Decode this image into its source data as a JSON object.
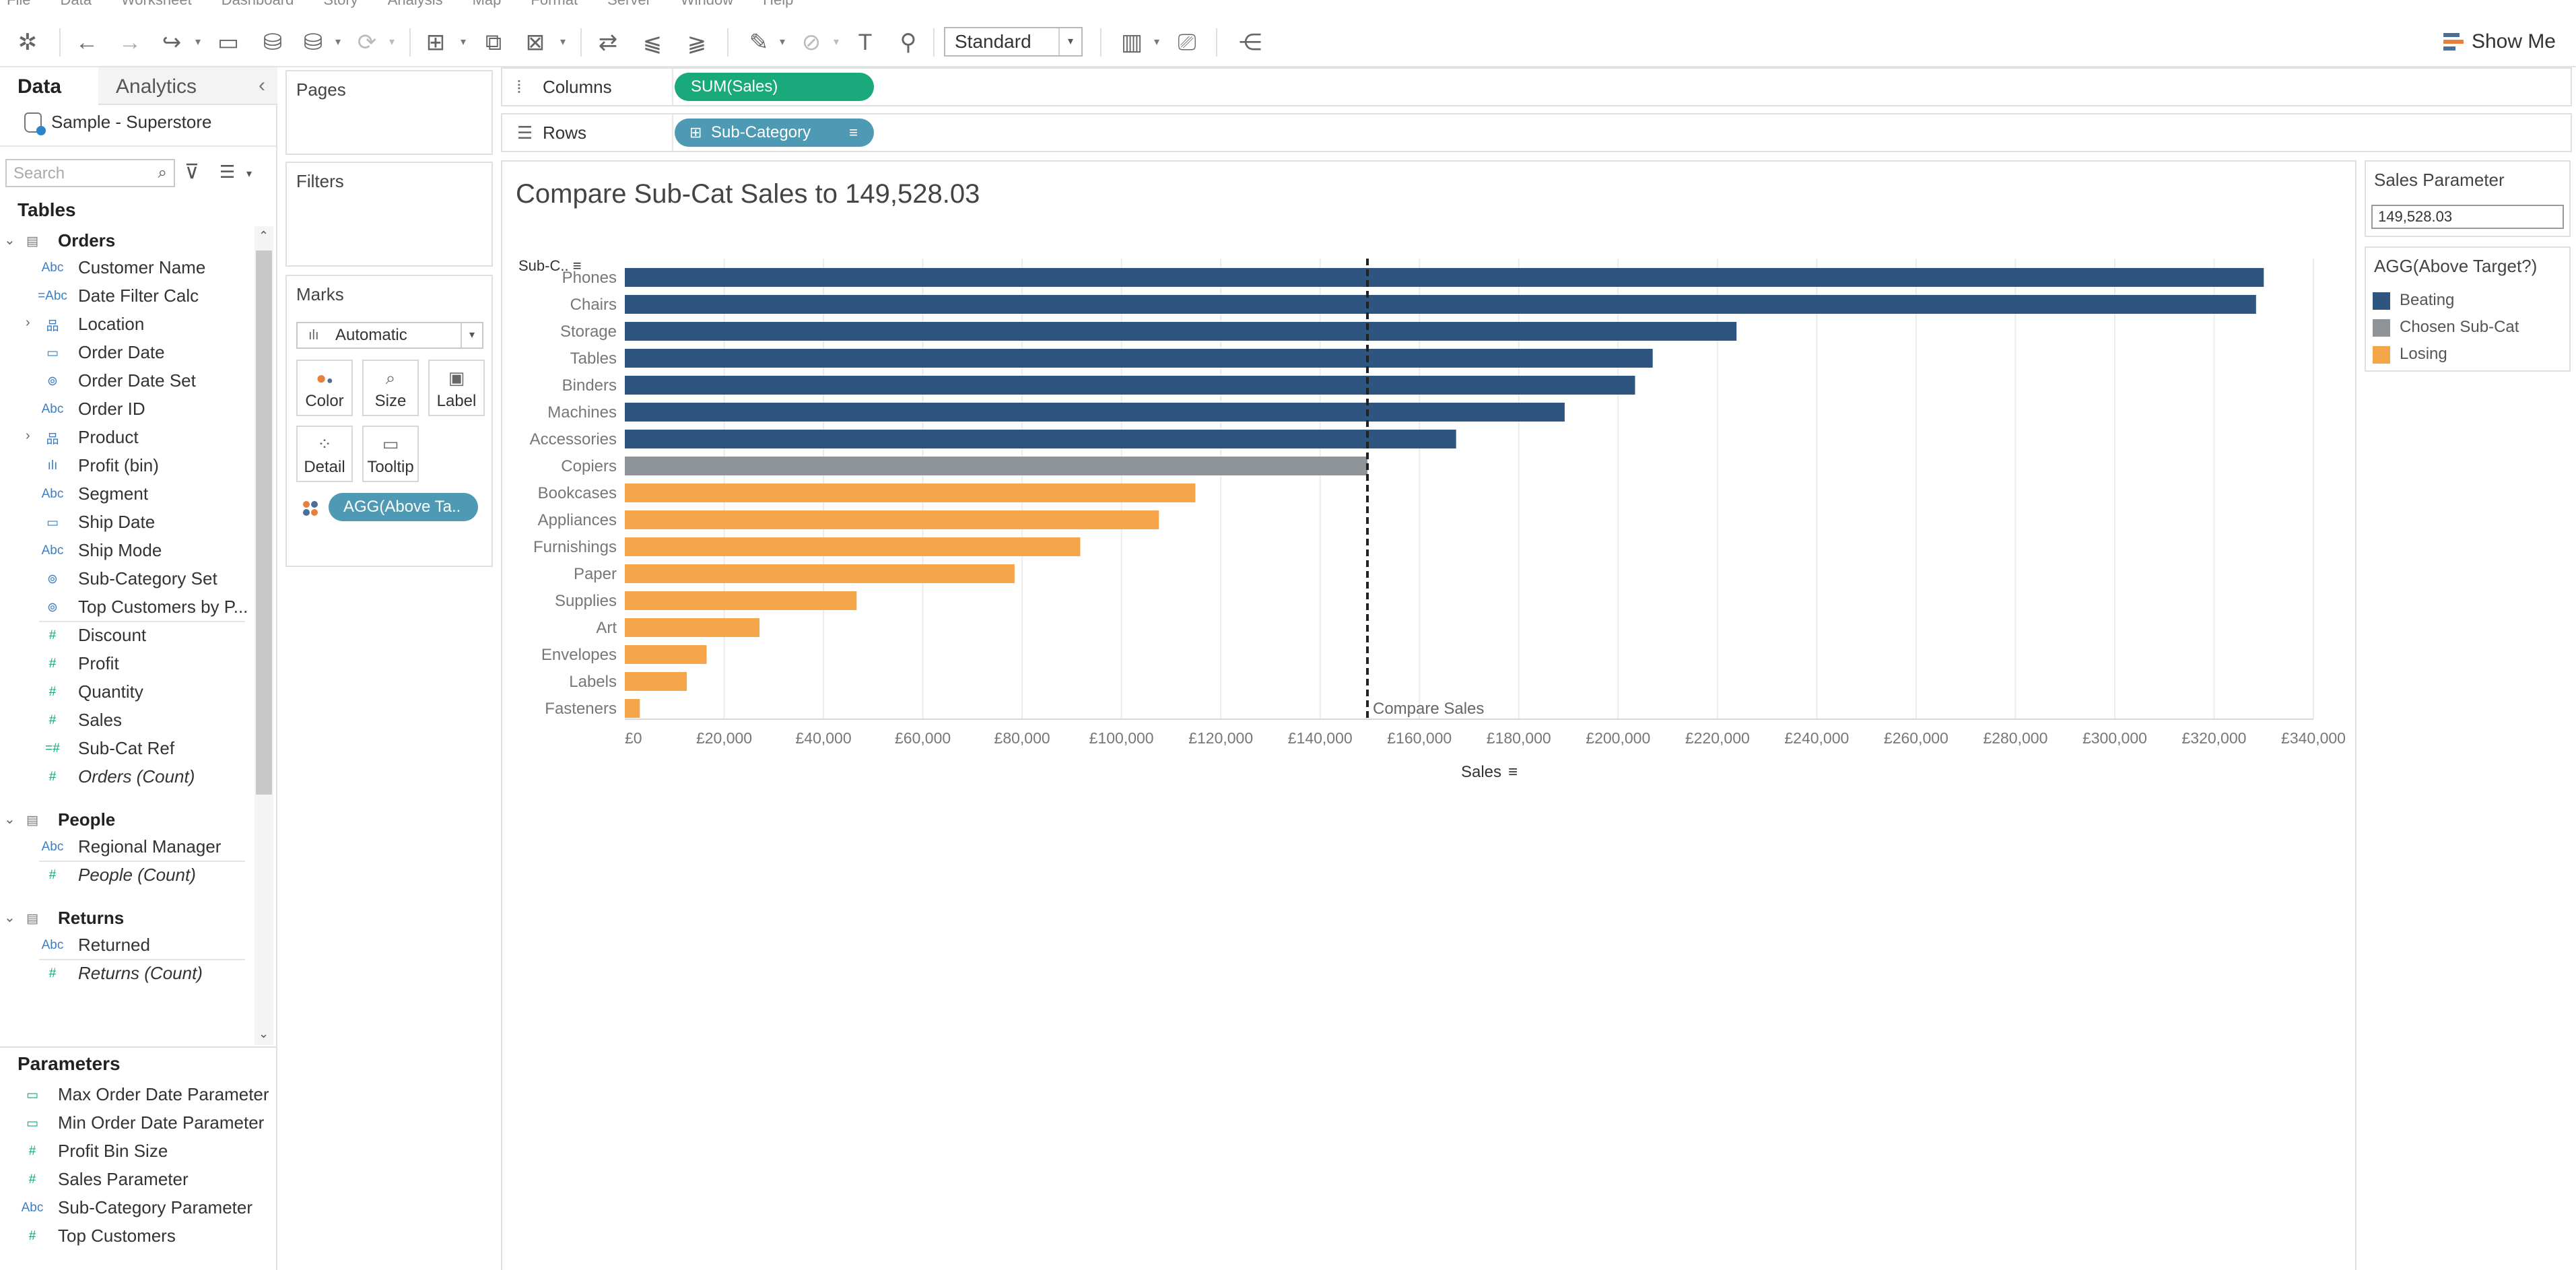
{
  "menu": [
    "File",
    "Data",
    "Worksheet",
    "Dashboard",
    "Story",
    "Analysis",
    "Map",
    "Format",
    "Server",
    "Window",
    "Help"
  ],
  "toolbar": {
    "fit_select": "Standard",
    "show_me": "Show Me"
  },
  "data_pane": {
    "tab_data": "Data",
    "tab_analytics": "Analytics",
    "datasource": "Sample - Superstore",
    "search_placeholder": "Search",
    "tables_heading": "Tables",
    "tables": [
      {
        "name": "Orders",
        "fields": [
          {
            "icon": "Abc",
            "label": "Customer Name"
          },
          {
            "icon": "=Abc",
            "label": "Date Filter Calc"
          },
          {
            "icon": "hier",
            "label": "Location",
            "expandable": true
          },
          {
            "icon": "cal",
            "label": "Order Date"
          },
          {
            "icon": "set",
            "label": "Order Date Set"
          },
          {
            "icon": "Abc",
            "label": "Order ID"
          },
          {
            "icon": "hier",
            "label": "Product",
            "expandable": true
          },
          {
            "icon": "bin",
            "label": "Profit (bin)"
          },
          {
            "icon": "Abc",
            "label": "Segment"
          },
          {
            "icon": "cal",
            "label": "Ship Date"
          },
          {
            "icon": "Abc",
            "label": "Ship Mode"
          },
          {
            "icon": "set",
            "label": "Sub-Category Set"
          },
          {
            "icon": "set",
            "label": "Top Customers by P..."
          },
          {
            "icon": "#",
            "label": "Discount",
            "measure": true
          },
          {
            "icon": "#",
            "label": "Profit",
            "measure": true
          },
          {
            "icon": "#",
            "label": "Quantity",
            "measure": true
          },
          {
            "icon": "#",
            "label": "Sales",
            "measure": true
          },
          {
            "icon": "=#",
            "label": "Sub-Cat Ref",
            "measure": true
          },
          {
            "icon": "#",
            "label": "Orders (Count)",
            "measure": true,
            "italic": true
          }
        ]
      },
      {
        "name": "People",
        "fields": [
          {
            "icon": "Abc",
            "label": "Regional Manager"
          },
          {
            "icon": "#",
            "label": "People (Count)",
            "measure": true,
            "italic": true
          }
        ]
      },
      {
        "name": "Returns",
        "fields": [
          {
            "icon": "Abc",
            "label": "Returned"
          },
          {
            "icon": "#",
            "label": "Returns (Count)",
            "measure": true,
            "italic": true
          }
        ]
      }
    ],
    "parameters_heading": "Parameters",
    "parameters": [
      {
        "icon": "cal",
        "label": "Max Order Date Parameter"
      },
      {
        "icon": "cal",
        "label": "Min Order Date Parameter"
      },
      {
        "icon": "#",
        "label": "Profit Bin Size"
      },
      {
        "icon": "#",
        "label": "Sales Parameter"
      },
      {
        "icon": "Abc",
        "label": "Sub-Category Parameter"
      },
      {
        "icon": "#",
        "label": "Top Customers"
      }
    ]
  },
  "cards": {
    "pages": "Pages",
    "filters": "Filters",
    "marks": "Marks",
    "mark_type": "Automatic",
    "mark_buttons": [
      "Color",
      "Size",
      "Label",
      "Detail",
      "Tooltip"
    ],
    "color_pill": "AGG(Above Ta.."
  },
  "shelves": {
    "columns_label": "Columns",
    "columns_pill": "SUM(Sales)",
    "rows_label": "Rows",
    "rows_pill": "Sub-Category"
  },
  "viz": {
    "title": "Compare Sub-Cat Sales to 149,528.03"
  },
  "parameter_card": {
    "title": "Sales Parameter",
    "value": "149,528.03"
  },
  "legend": {
    "title": "AGG(Above Target?)",
    "items": [
      {
        "label": "Beating",
        "color": "#2d5580"
      },
      {
        "label": "Chosen Sub-Cat",
        "color": "#8f9498"
      },
      {
        "label": "Losing",
        "color": "#f5a54a"
      }
    ]
  },
  "chart_data": {
    "type": "bar",
    "orientation": "horizontal",
    "row_header": "Sub-C..",
    "xlabel": "Sales",
    "xlim": [
      0,
      340000
    ],
    "x_ticks": [
      0,
      20000,
      40000,
      60000,
      80000,
      100000,
      120000,
      140000,
      160000,
      180000,
      200000,
      220000,
      240000,
      260000,
      280000,
      300000,
      320000,
      340000
    ],
    "x_tick_labels": [
      "£0",
      "£20,000",
      "£40,000",
      "£60,000",
      "£80,000",
      "£100,000",
      "£120,000",
      "£140,000",
      "£160,000",
      "£180,000",
      "£200,000",
      "£220,000",
      "£240,000",
      "£260,000",
      "£280,000",
      "£300,000",
      "£320,000",
      "£340,000"
    ],
    "reference_line": {
      "value": 149528.03,
      "label": "Compare Sales"
    },
    "categories": [
      "Phones",
      "Chairs",
      "Storage",
      "Tables",
      "Binders",
      "Machines",
      "Accessories",
      "Copiers",
      "Bookcases",
      "Appliances",
      "Furnishings",
      "Paper",
      "Supplies",
      "Art",
      "Envelopes",
      "Labels",
      "Fasteners"
    ],
    "values": [
      330007,
      328449,
      223844,
      206966,
      203413,
      189239,
      167380,
      149528,
      114880,
      107532,
      91705,
      78479,
      46674,
      27119,
      16476,
      12486,
      3024
    ],
    "groups": [
      "Beating",
      "Beating",
      "Beating",
      "Beating",
      "Beating",
      "Beating",
      "Beating",
      "Chosen Sub-Cat",
      "Losing",
      "Losing",
      "Losing",
      "Losing",
      "Losing",
      "Losing",
      "Losing",
      "Losing",
      "Losing"
    ],
    "grid": true
  }
}
